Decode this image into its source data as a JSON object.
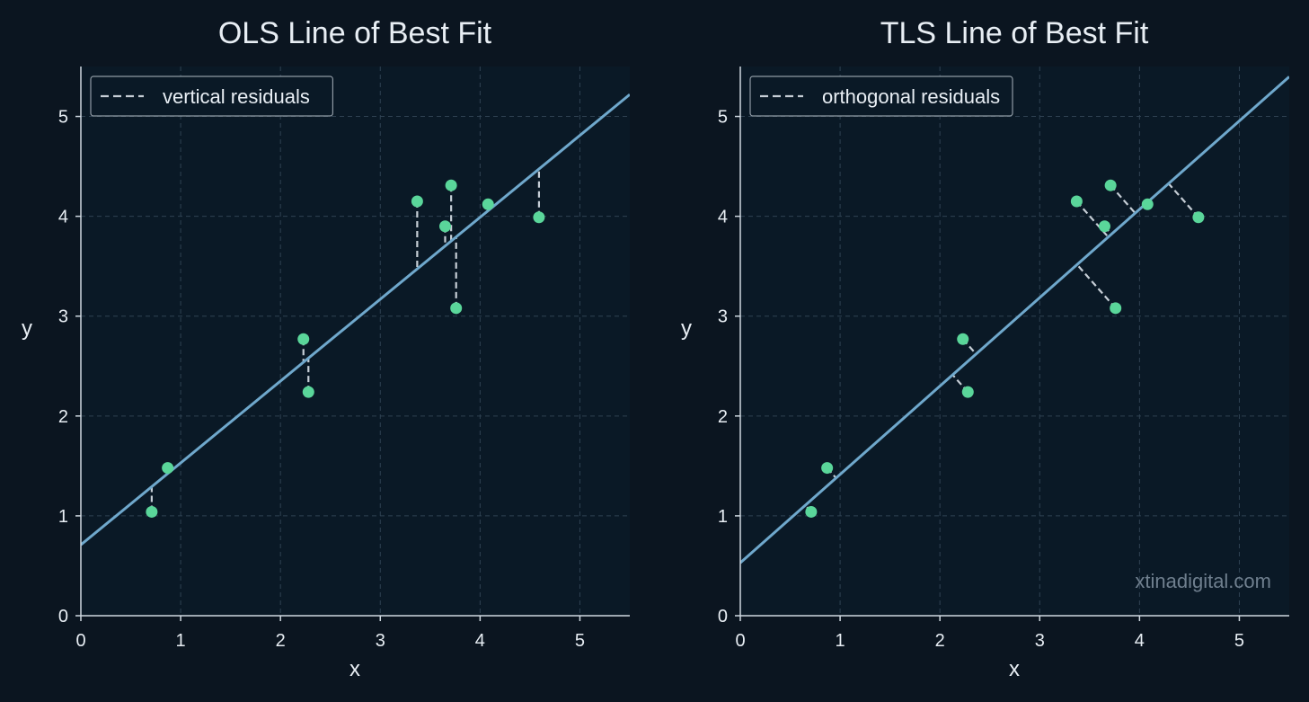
{
  "colors": {
    "background": "#0b1520",
    "plot_background": "#0a1926",
    "axis": "#cfd8e0",
    "grid": "#2f4252",
    "fit_line": "#6fa8cc",
    "points": "#5ad69a",
    "residuals": "#c6ced6",
    "legend_border": "#8f9aa4"
  },
  "watermark": "xtinadigital.com",
  "chart_data": [
    {
      "type": "scatter",
      "title": "OLS Line of Best Fit",
      "xlabel": "x",
      "ylabel": "y",
      "xlim": [
        0,
        5.5
      ],
      "ylim": [
        0,
        5.5
      ],
      "xticks": [
        "0",
        "1",
        "2",
        "3",
        "4",
        "5"
      ],
      "yticks": [
        "0",
        "1",
        "2",
        "3",
        "4",
        "5"
      ],
      "grid": true,
      "legend": {
        "placement": "top-left",
        "entries": [
          "vertical residuals"
        ]
      },
      "points": {
        "x": [
          0.71,
          0.87,
          2.23,
          2.28,
          3.37,
          3.65,
          3.71,
          3.76,
          4.08,
          4.59
        ],
        "y": [
          1.04,
          1.48,
          2.77,
          2.24,
          4.15,
          3.9,
          4.31,
          3.08,
          4.12,
          3.99
        ]
      },
      "fit_line": {
        "intercept": 0.71,
        "slope": 0.82
      },
      "residuals": "vertical"
    },
    {
      "type": "scatter",
      "title": "TLS Line of Best Fit",
      "xlabel": "x",
      "ylabel": "y",
      "xlim": [
        0,
        5.5
      ],
      "ylim": [
        0,
        5.5
      ],
      "xticks": [
        "0",
        "1",
        "2",
        "3",
        "4",
        "5"
      ],
      "yticks": [
        "0",
        "1",
        "2",
        "3",
        "4",
        "5"
      ],
      "grid": true,
      "legend": {
        "placement": "top-left",
        "entries": [
          "orthogonal residuals"
        ]
      },
      "points": {
        "x": [
          0.71,
          0.87,
          2.23,
          2.28,
          3.37,
          3.65,
          3.71,
          3.76,
          4.08,
          4.59
        ],
        "y": [
          1.04,
          1.48,
          2.77,
          2.24,
          4.15,
          3.9,
          4.31,
          3.08,
          4.12,
          3.99
        ]
      },
      "fit_line": {
        "intercept": 0.53,
        "slope": 0.885
      },
      "residuals": "orthogonal"
    }
  ]
}
